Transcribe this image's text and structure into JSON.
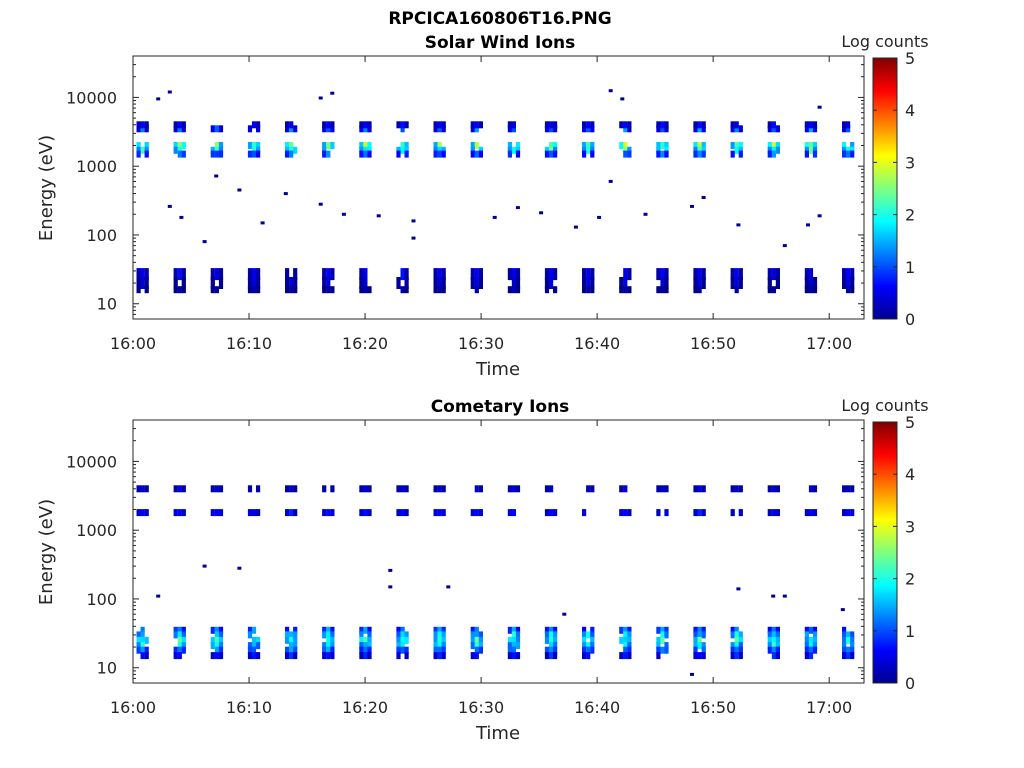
{
  "figure_title": "RPCICA160806T16.PNG",
  "colormap_name": "jet",
  "chart_data": [
    {
      "type": "heatmap",
      "title": "Solar Wind Ions",
      "xlabel": "Time",
      "ylabel": "Energy (eV)",
      "x_tick_labels": [
        "16:00",
        "16:10",
        "16:20",
        "16:30",
        "16:40",
        "16:50",
        "17:00"
      ],
      "x_range": [
        "16:00",
        "17:03"
      ],
      "y_scale": "log",
      "y_tick_labels": [
        "10",
        "100",
        "1000",
        "10000"
      ],
      "y_range": [
        6,
        40000
      ],
      "colorbar": {
        "label": "Log counts",
        "range": [
          0,
          5
        ],
        "ticks": [
          "0",
          "1",
          "2",
          "3",
          "4",
          "5"
        ]
      },
      "scan_period_min": 3.2,
      "scan_start_min": 0.3,
      "bands": [
        {
          "energy": 2000,
          "width": 1,
          "logcount": 1.8,
          "peak": 2.6
        },
        {
          "energy": 1700,
          "width": 1,
          "logcount": 1.6,
          "peak": 2.2
        },
        {
          "energy": 1500,
          "width": 1,
          "logcount": 0.8,
          "peak": 1.2
        },
        {
          "energy": 3500,
          "width": 1,
          "logcount": 0.5,
          "peak": 1.3
        },
        {
          "energy": 4000,
          "width": 1,
          "logcount": 0.3,
          "peak": 0.6
        },
        {
          "energy": 27,
          "width": 2,
          "logcount": 0.2,
          "peak": 0.6
        },
        {
          "energy": 20,
          "width": 2,
          "logcount": 0.1,
          "peak": 0.5
        },
        {
          "energy": 16,
          "width": 1,
          "logcount": 0.05,
          "peak": 0.2
        }
      ],
      "sparse": [
        {
          "time": "16:03",
          "energy": 12000,
          "logcount": 0.1
        },
        {
          "time": "16:02",
          "energy": 9500,
          "logcount": 0.1
        },
        {
          "time": "16:16",
          "energy": 9800,
          "logcount": 0.1
        },
        {
          "time": "16:17",
          "energy": 11500,
          "logcount": 0.1
        },
        {
          "time": "16:41",
          "energy": 12500,
          "logcount": 0.1
        },
        {
          "time": "16:42",
          "energy": 9500,
          "logcount": 0.1
        },
        {
          "time": "16:59",
          "energy": 7200,
          "logcount": 0.1
        },
        {
          "time": "16:03",
          "energy": 260,
          "logcount": 0.1
        },
        {
          "time": "16:04",
          "energy": 180,
          "logcount": 0.1
        },
        {
          "time": "16:06",
          "energy": 80,
          "logcount": 0.1
        },
        {
          "time": "16:07",
          "energy": 720,
          "logcount": 0.1
        },
        {
          "time": "16:09",
          "energy": 450,
          "logcount": 0.1
        },
        {
          "time": "16:11",
          "energy": 150,
          "logcount": 0.1
        },
        {
          "time": "16:13",
          "energy": 400,
          "logcount": 0.1
        },
        {
          "time": "16:16",
          "energy": 280,
          "logcount": 0.1
        },
        {
          "time": "16:18",
          "energy": 200,
          "logcount": 0.1
        },
        {
          "time": "16:21",
          "energy": 190,
          "logcount": 0.1
        },
        {
          "time": "16:24",
          "energy": 160,
          "logcount": 0.1
        },
        {
          "time": "16:24",
          "energy": 90,
          "logcount": 0.1
        },
        {
          "time": "16:31",
          "energy": 180,
          "logcount": 0.1
        },
        {
          "time": "16:33",
          "energy": 250,
          "logcount": 0.1
        },
        {
          "time": "16:35",
          "energy": 210,
          "logcount": 0.1
        },
        {
          "time": "16:38",
          "energy": 130,
          "logcount": 0.1
        },
        {
          "time": "16:40",
          "energy": 180,
          "logcount": 0.1
        },
        {
          "time": "16:41",
          "energy": 600,
          "logcount": 0.1
        },
        {
          "time": "16:44",
          "energy": 200,
          "logcount": 0.1
        },
        {
          "time": "16:48",
          "energy": 260,
          "logcount": 0.1
        },
        {
          "time": "16:49",
          "energy": 350,
          "logcount": 0.1
        },
        {
          "time": "16:52",
          "energy": 140,
          "logcount": 0.1
        },
        {
          "time": "16:56",
          "energy": 70,
          "logcount": 0.1
        },
        {
          "time": "16:58",
          "energy": 140,
          "logcount": 0.1
        },
        {
          "time": "16:59",
          "energy": 190,
          "logcount": 0.1
        }
      ]
    },
    {
      "type": "heatmap",
      "title": "Cometary Ions",
      "xlabel": "Time",
      "ylabel": "Energy (eV)",
      "x_tick_labels": [
        "16:00",
        "16:10",
        "16:20",
        "16:30",
        "16:40",
        "16:50",
        "17:00"
      ],
      "x_range": [
        "16:00",
        "17:03"
      ],
      "y_scale": "log",
      "y_tick_labels": [
        "10",
        "100",
        "1000",
        "10000"
      ],
      "y_range": [
        6,
        40000
      ],
      "colorbar": {
        "label": "Log counts",
        "range": [
          0,
          5
        ],
        "ticks": [
          "0",
          "1",
          "2",
          "3",
          "4",
          "5"
        ]
      },
      "scan_period_min": 3.2,
      "scan_start_min": 0.3,
      "bands": [
        {
          "energy": 35,
          "width": 1,
          "logcount": 0.8,
          "peak": 1.3
        },
        {
          "energy": 30,
          "width": 1,
          "logcount": 1.3,
          "peak": 1.8
        },
        {
          "energy": 25,
          "width": 1,
          "logcount": 1.6,
          "peak": 2.1
        },
        {
          "energy": 21,
          "width": 1,
          "logcount": 1.4,
          "peak": 1.9
        },
        {
          "energy": 18,
          "width": 1,
          "logcount": 1.0,
          "peak": 1.4
        },
        {
          "energy": 15,
          "width": 1,
          "logcount": 0.4,
          "peak": 0.8
        },
        {
          "energy": 1800,
          "width": 1,
          "logcount": 0.4,
          "peak": 0.7
        },
        {
          "energy": 4000,
          "width": 1,
          "logcount": 0.2,
          "peak": 0.4
        }
      ],
      "sparse": [
        {
          "time": "16:06",
          "energy": 300,
          "logcount": 0.1
        },
        {
          "time": "16:09",
          "energy": 280,
          "logcount": 0.1
        },
        {
          "time": "16:02",
          "energy": 110,
          "logcount": 0.1
        },
        {
          "time": "16:22",
          "energy": 260,
          "logcount": 0.1
        },
        {
          "time": "16:22",
          "energy": 150,
          "logcount": 0.1
        },
        {
          "time": "16:27",
          "energy": 150,
          "logcount": 0.1
        },
        {
          "time": "16:37",
          "energy": 60,
          "logcount": 0.1
        },
        {
          "time": "16:52",
          "energy": 140,
          "logcount": 0.1
        },
        {
          "time": "16:55",
          "energy": 110,
          "logcount": 0.1
        },
        {
          "time": "16:56",
          "energy": 110,
          "logcount": 0.1
        },
        {
          "time": "17:01",
          "energy": 70,
          "logcount": 0.1
        },
        {
          "time": "16:48",
          "energy": 8,
          "logcount": 0.1
        }
      ]
    }
  ]
}
